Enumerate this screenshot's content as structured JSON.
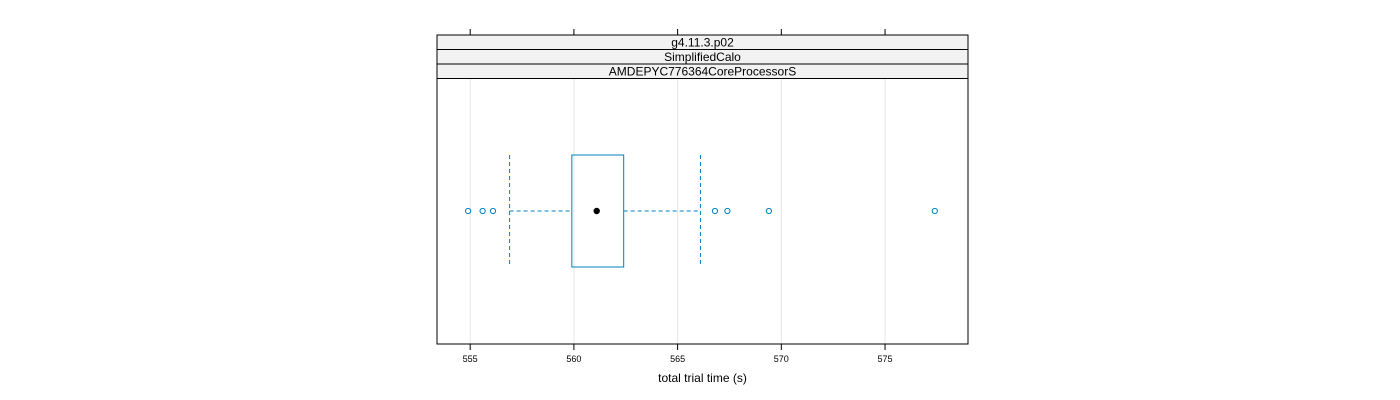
{
  "chart_data": {
    "type": "boxplot",
    "orientation": "horizontal",
    "strips": [
      "g4.11.3.p02",
      "SimplifiedCalo",
      "AMDEPYC776364CoreProcessorS"
    ],
    "xlabel": "total trial time (s)",
    "xlim": [
      553.4,
      579.0
    ],
    "ticks": [
      555,
      560,
      565,
      570,
      575
    ],
    "tick_labels": [
      "555",
      "560",
      "565",
      "570",
      "575"
    ],
    "grid": true,
    "box": {
      "whisker_low": 556.9,
      "q1": 559.9,
      "median": 561.1,
      "q3": 562.4,
      "whisker_high": 566.1
    },
    "outliers": [
      554.9,
      555.6,
      556.1,
      566.8,
      567.4,
      569.4,
      577.4
    ],
    "colors": {
      "box": "#0080c0",
      "median_dot": "#000000",
      "grid": "#e6e6e6",
      "strip_fill": "#f2f2f2"
    }
  }
}
